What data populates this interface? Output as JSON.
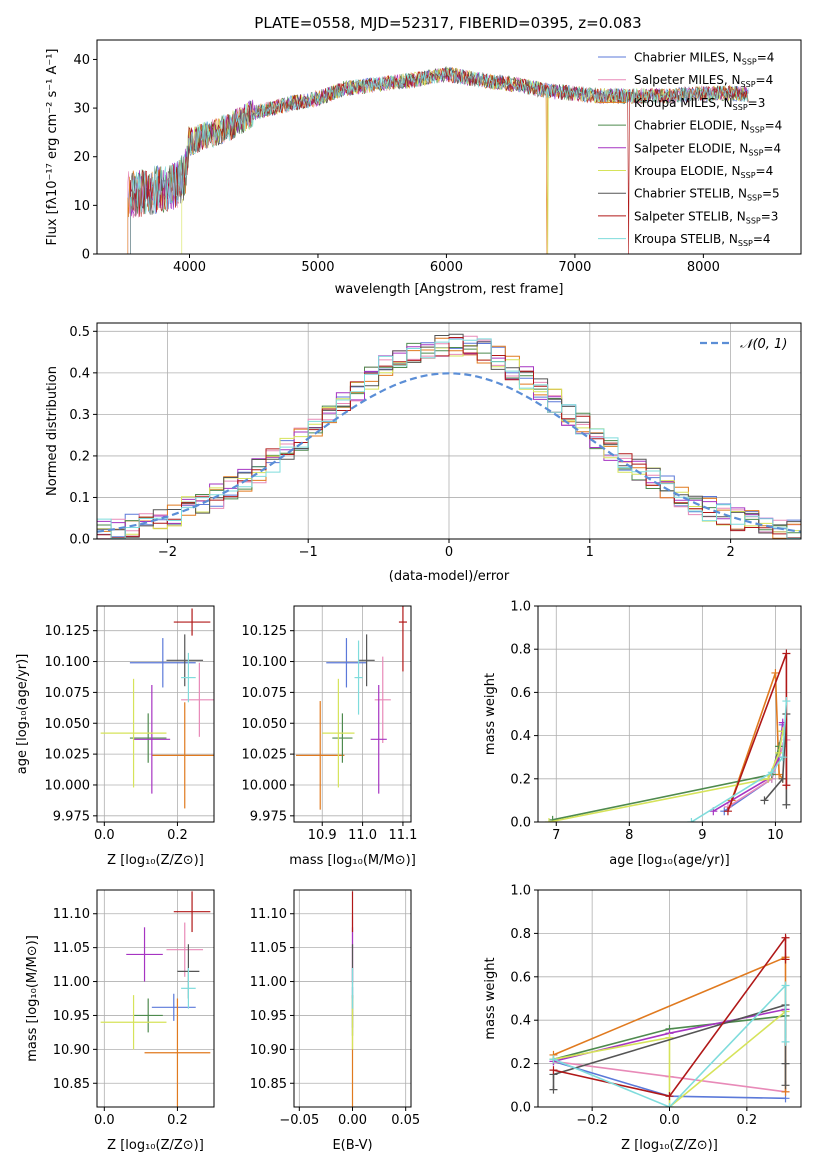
{
  "title": "PLATE=0558, MJD=52317, FIBERID=0395, z=0.083",
  "series": [
    {
      "name": "Chabrier MILES, N$_{SSP}$=4",
      "label": "Chabrier MILES, N",
      "nssp": "4",
      "color": "#5b79d9"
    },
    {
      "name": "Salpeter MILES, N$_{SSP}$=4",
      "label": "Salpeter MILES, N",
      "nssp": "4",
      "color": "#e88ab8"
    },
    {
      "name": "Kroupa MILES, N$_{SSP}$=3",
      "label": "Kroupa MILES, N",
      "nssp": "3",
      "color": "#e07a1f"
    },
    {
      "name": "Chabrier ELODIE, N$_{SSP}$=4",
      "label": "Chabrier ELODIE, N",
      "nssp": "4",
      "color": "#4e8a4e"
    },
    {
      "name": "Salpeter ELODIE, N$_{SSP}$=4",
      "label": "Salpeter ELODIE, N",
      "nssp": "4",
      "color": "#a634c2"
    },
    {
      "name": "Kroupa ELODIE, N$_{SSP}$=4",
      "label": "Kroupa ELODIE, N",
      "nssp": "4",
      "color": "#d6e35a"
    },
    {
      "name": "Chabrier STELIB, N$_{SSP}$=5",
      "label": "Chabrier STELIB, N",
      "nssp": "5",
      "color": "#555555"
    },
    {
      "name": "Salpeter STELIB, N$_{SSP}$=3",
      "label": "Salpeter STELIB, N",
      "nssp": "3",
      "color": "#b01818"
    },
    {
      "name": "Kroupa STELIB, N$_{SSP}$=4",
      "label": "Kroupa STELIB, N",
      "nssp": "4",
      "color": "#7fdcdc"
    }
  ],
  "chart_data": [
    {
      "type": "line",
      "title": "PLATE=0558, MJD=52317, FIBERID=0395, z=0.083",
      "xlabel": "wavelength [Angstrom, rest frame]",
      "ylabel": "Flux [f$_\\lambda$10$^{-17}$ erg cm$^{-2}$ s$^{-1}$ A$^{-1}$]",
      "xlim": [
        3280,
        8760
      ],
      "ylim": [
        0,
        44
      ],
      "xticks": [
        4000,
        5000,
        6000,
        7000,
        8000
      ],
      "yticks": [
        0,
        10,
        20,
        30,
        40
      ],
      "continuum": {
        "x": [
          3520,
          3700,
          3900,
          3960,
          4000,
          4100,
          4300,
          4500,
          4800,
          5000,
          5200,
          5500,
          5800,
          6000,
          6200,
          6500,
          6800,
          7000,
          7200,
          7400,
          7700,
          8000,
          8300,
          8500
        ],
        "y": [
          12,
          13,
          14,
          16,
          23,
          24,
          26,
          29,
          31,
          32,
          34,
          35,
          36,
          37,
          36,
          35,
          33.5,
          33,
          32.5,
          32.5,
          32.5,
          33,
          33,
          32
        ]
      },
      "legend": "upper right",
      "grid": false
    },
    {
      "type": "line",
      "xlabel": "(data-model)/error",
      "ylabel": "Normed distribution",
      "xlim": [
        -2.5,
        2.5
      ],
      "ylim": [
        0,
        0.52
      ],
      "xticks": [
        -2,
        -1,
        0,
        1,
        2
      ],
      "yticks": [
        0.0,
        0.1,
        0.2,
        0.3,
        0.4,
        0.5
      ],
      "reference": {
        "name": "$\\mathcal{N}(0,1)$",
        "label": "𝒩(0, 1)",
        "color": "#5b8ed6"
      },
      "histogram_bins": {
        "start": -2.5,
        "step": 0.1,
        "count": 50
      },
      "grid": true
    },
    {
      "type": "scatter",
      "xlabel": "Z [log$_{10}$(Z/Z$_\\odot$)]",
      "ylabel": "age  [log$_{10}$($age/yr$)]",
      "xlim": [
        -0.02,
        0.3
      ],
      "ylim": [
        9.97,
        10.145
      ],
      "xticks": [
        0.0,
        0.2
      ],
      "yticks": [
        9.975,
        10.0,
        10.025,
        10.05,
        10.075,
        10.1,
        10.125
      ],
      "points": [
        {
          "x": 0.16,
          "y": 10.099,
          "xerr": 0.09,
          "yerr": 0.02
        },
        {
          "x": 0.26,
          "y": 10.069,
          "xerr": 0.05,
          "yerr": 0.03
        },
        {
          "x": 0.22,
          "y": 10.024,
          "xerr": 0.09,
          "yerr": 0.043
        },
        {
          "x": 0.12,
          "y": 10.038,
          "xerr": 0.05,
          "yerr": 0.02
        },
        {
          "x": 0.13,
          "y": 10.037,
          "xerr": 0.05,
          "yerr": 0.044
        },
        {
          "x": 0.08,
          "y": 10.042,
          "xerr": 0.09,
          "yerr": 0.044
        },
        {
          "x": 0.22,
          "y": 10.101,
          "xerr": 0.05,
          "yerr": 0.021
        },
        {
          "x": 0.24,
          "y": 10.132,
          "xerr": 0.05,
          "yerr": 0.011
        },
        {
          "x": 0.23,
          "y": 10.087,
          "xerr": 0.02,
          "yerr": 0.02
        }
      ],
      "grid": true
    },
    {
      "type": "scatter",
      "xlabel": "mass [log$_{10}$($M/M_\\odot$)]",
      "xlim": [
        10.83,
        11.12
      ],
      "ylim": [
        9.97,
        10.145
      ],
      "xticks": [
        10.9,
        11.0,
        11.1
      ],
      "yticks": [
        9.975,
        10.0,
        10.025,
        10.05,
        10.075,
        10.1,
        10.125
      ],
      "points": [
        {
          "x": 10.96,
          "y": 10.099,
          "xerr": 0.05,
          "yerr": 0.02
        },
        {
          "x": 11.05,
          "y": 10.069,
          "xerr": 0.02,
          "yerr": 0.035
        },
        {
          "x": 10.895,
          "y": 10.024,
          "xerr": 0.06,
          "yerr": 0.044
        },
        {
          "x": 10.95,
          "y": 10.038,
          "xerr": 0.025,
          "yerr": 0.02
        },
        {
          "x": 11.04,
          "y": 10.037,
          "xerr": 0.02,
          "yerr": 0.044
        },
        {
          "x": 10.94,
          "y": 10.042,
          "xerr": 0.04,
          "yerr": 0.044
        },
        {
          "x": 11.01,
          "y": 10.101,
          "xerr": 0.02,
          "yerr": 0.021
        },
        {
          "x": 11.1,
          "y": 10.132,
          "xerr": 0.01,
          "yerr": 0.04
        },
        {
          "x": 10.99,
          "y": 10.087,
          "xerr": 0.01,
          "yerr": 0.03
        }
      ],
      "grid": true
    },
    {
      "type": "line",
      "xlabel": "age  [log$_{10}$($age/yr$)]",
      "ylabel": "mass weight",
      "xlim": [
        6.75,
        10.35
      ],
      "ylim": [
        0,
        1
      ],
      "xticks": [
        7,
        8,
        9,
        10
      ],
      "yticks": [
        0.0,
        0.2,
        0.4,
        0.6,
        0.8,
        1.0
      ],
      "series": [
        {
          "x": [
            9.3,
            9.95,
            10.05,
            10.1
          ],
          "y": [
            0.05,
            0.2,
            0.3,
            0.45
          ]
        },
        {
          "x": [
            9.35,
            9.95,
            10.1,
            10.15
          ],
          "y": [
            0.07,
            0.2,
            0.35,
            0.38
          ]
        },
        {
          "x": [
            9.4,
            10.0,
            10.05,
            10.1
          ],
          "y": [
            0.1,
            0.69,
            0.22,
            0.2
          ]
        },
        {
          "x": [
            6.95,
            9.95,
            10.05,
            10.1
          ],
          "y": [
            0.01,
            0.22,
            0.35,
            0.42
          ]
        },
        {
          "x": [
            9.15,
            9.9,
            10.05,
            10.1
          ],
          "y": [
            0.05,
            0.2,
            0.3,
            0.46
          ]
        },
        {
          "x": [
            6.9,
            9.9,
            10.05,
            10.1
          ],
          "y": [
            0.0,
            0.2,
            0.32,
            0.42
          ]
        },
        {
          "x": [
            9.85,
            10.1,
            10.15,
            10.15
          ],
          "y": [
            0.1,
            0.2,
            0.5,
            0.08
          ]
        },
        {
          "x": [
            9.35,
            10.15,
            10.15
          ],
          "y": [
            0.05,
            0.78,
            0.17
          ]
        },
        {
          "x": [
            8.85,
            9.95,
            10.1,
            10.15
          ],
          "y": [
            0.0,
            0.23,
            0.3,
            0.56
          ]
        }
      ],
      "grid": true
    },
    {
      "type": "scatter",
      "xlabel": "Z [log$_{10}$(Z/Z$_\\odot$)]",
      "ylabel": "mass [log$_{10}$($M/M_\\odot$)]",
      "xlim": [
        -0.02,
        0.3
      ],
      "ylim": [
        10.815,
        11.135
      ],
      "xticks": [
        0.0,
        0.2
      ],
      "yticks": [
        10.85,
        10.9,
        10.95,
        11.0,
        11.05,
        11.1
      ],
      "points": [
        {
          "x": 0.19,
          "y": 10.962,
          "xerr": 0.06,
          "yerr": 0.02
        },
        {
          "x": 0.22,
          "y": 11.047,
          "xerr": 0.05,
          "yerr": 0.04
        },
        {
          "x": 0.2,
          "y": 10.895,
          "xerr": 0.09,
          "yerr": 0.08
        },
        {
          "x": 0.12,
          "y": 10.95,
          "xerr": 0.04,
          "yerr": 0.025
        },
        {
          "x": 0.11,
          "y": 11.04,
          "xerr": 0.05,
          "yerr": 0.04
        },
        {
          "x": 0.08,
          "y": 10.94,
          "xerr": 0.09,
          "yerr": 0.04
        },
        {
          "x": 0.23,
          "y": 11.015,
          "xerr": 0.03,
          "yerr": 0.04
        },
        {
          "x": 0.24,
          "y": 11.103,
          "xerr": 0.05,
          "yerr": 0.03
        },
        {
          "x": 0.23,
          "y": 10.99,
          "xerr": 0.02,
          "yerr": 0.03
        }
      ],
      "grid": true
    },
    {
      "type": "scatter",
      "xlabel": "E(B-V)",
      "xlim": [
        -0.055,
        0.055
      ],
      "ylim": [
        10.815,
        11.135
      ],
      "xticks": [
        -0.05,
        0.0,
        0.05
      ],
      "yticks": [
        10.85,
        10.9,
        10.95,
        11.0,
        11.05,
        11.1
      ],
      "points": [
        {
          "x": 0.0,
          "y": 10.962,
          "xerr": 0,
          "yerr": 0.03
        },
        {
          "x": 0.0,
          "y": 11.047,
          "xerr": 0,
          "yerr": 0.05
        },
        {
          "x": 0.0,
          "y": 10.895,
          "xerr": 0,
          "yerr": 0.08
        },
        {
          "x": 0.0,
          "y": 10.95,
          "xerr": 0,
          "yerr": 0.03
        },
        {
          "x": 0.0,
          "y": 11.04,
          "xerr": 0,
          "yerr": 0.04
        },
        {
          "x": 0.0,
          "y": 10.94,
          "xerr": 0,
          "yerr": 0.04
        },
        {
          "x": 0.0,
          "y": 11.015,
          "xerr": 0,
          "yerr": 0.04
        },
        {
          "x": 0.0,
          "y": 11.103,
          "xerr": 0,
          "yerr": 0.03
        },
        {
          "x": 0.0,
          "y": 10.99,
          "xerr": 0,
          "yerr": 0.03
        }
      ],
      "grid": true
    },
    {
      "type": "line",
      "xlabel": "Z [log$_{10}$(Z/Z$_\\odot$)]",
      "ylabel": "mass weight",
      "xlim": [
        -0.34,
        0.34
      ],
      "ylim": [
        0,
        1
      ],
      "xticks": [
        -0.2,
        0.0,
        0.2
      ],
      "yticks": [
        0.0,
        0.2,
        0.4,
        0.6,
        0.8,
        1.0
      ],
      "series": [
        {
          "x": [
            -0.3,
            0.0,
            0.3
          ],
          "y": [
            0.21,
            0.05,
            0.04
          ]
        },
        {
          "x": [
            -0.3,
            0.0,
            0.3
          ],
          "y": [
            0.21,
            0.14,
            0.07
          ]
        },
        {
          "x": [
            -0.3,
            0.3,
            0.3
          ],
          "y": [
            0.24,
            0.69,
            0.07
          ]
        },
        {
          "x": [
            -0.3,
            0.0,
            0.3
          ],
          "y": [
            0.22,
            0.36,
            0.42
          ]
        },
        {
          "x": [
            -0.3,
            0.0,
            0.3
          ],
          "y": [
            0.21,
            0.34,
            0.45
          ]
        },
        {
          "x": [
            -0.3,
            0.0,
            0.0,
            0.3
          ],
          "y": [
            0.22,
            0.32,
            0.0,
            0.44
          ]
        },
        {
          "x": [
            -0.3,
            -0.3,
            0.3,
            0.3,
            0.3
          ],
          "y": [
            0.08,
            0.15,
            0.47,
            0.2,
            0.1
          ]
        },
        {
          "x": [
            -0.3,
            0.0,
            0.3,
            0.3
          ],
          "y": [
            0.17,
            0.05,
            0.78,
            0.68
          ]
        },
        {
          "x": [
            -0.3,
            0.0,
            0.3,
            0.3
          ],
          "y": [
            0.22,
            0.0,
            0.56,
            0.3
          ]
        }
      ],
      "grid": true
    }
  ]
}
